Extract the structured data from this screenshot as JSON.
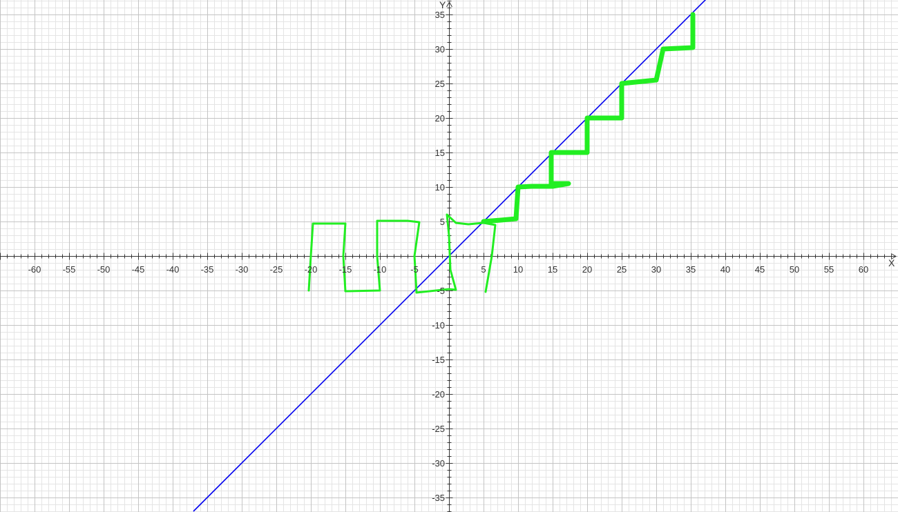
{
  "chart_data": {
    "type": "line",
    "title": "",
    "xlabel": "X",
    "ylabel": "Y",
    "xlim": [
      -65,
      65
    ],
    "ylim": [
      -37.1,
      37.1
    ],
    "grid": true,
    "minor_grid_step": 1,
    "major_grid_step": 5,
    "tick_step": 5,
    "x_tick_labels": [
      "-60",
      "-55",
      "-50",
      "-45",
      "-40",
      "-35",
      "-30",
      "-25",
      "-20",
      "-15",
      "-10",
      "-5",
      "5",
      "10",
      "15",
      "20",
      "25",
      "30",
      "35",
      "40",
      "45",
      "50",
      "55",
      "60"
    ],
    "y_tick_labels": [
      "35",
      "30",
      "25",
      "20",
      "15",
      "10",
      "5",
      "-5",
      "-10",
      "-15",
      "-20",
      "-25",
      "-30",
      "-35"
    ],
    "series": [
      {
        "kind": "line",
        "color": "#0000ee",
        "points": [
          [
            -37,
            -37
          ],
          [
            37.4,
            37.4
          ]
        ]
      },
      {
        "kind": "freehand",
        "color": "#22ee22",
        "stroke": "thin",
        "points": [
          [
            -20.3,
            -5
          ],
          [
            -20,
            0
          ],
          [
            -19.7,
            4.7
          ],
          [
            -15,
            4.7
          ],
          [
            -15.3,
            0
          ],
          [
            -15,
            -5.1
          ],
          [
            -10,
            -5
          ],
          [
            -10.4,
            0
          ],
          [
            -10.4,
            5.1
          ],
          [
            -6,
            5.1
          ],
          [
            -4.3,
            4.9
          ],
          [
            -5,
            0
          ],
          [
            -4.7,
            -5.3
          ],
          [
            0,
            -4.8
          ],
          [
            1,
            -4.9
          ],
          [
            0.2,
            -2
          ],
          [
            0,
            3
          ],
          [
            -0.3,
            6
          ],
          [
            1,
            4.8
          ],
          [
            2.8,
            4.6
          ],
          [
            5,
            4.8
          ],
          [
            6.7,
            4.5
          ],
          [
            6.2,
            0
          ],
          [
            5.3,
            -5.2
          ]
        ]
      },
      {
        "kind": "freehand",
        "color": "#22ee22",
        "stroke": "thick",
        "points": [
          [
            5,
            5
          ],
          [
            7.5,
            5.2
          ],
          [
            9.7,
            5.4
          ],
          [
            10,
            10
          ],
          [
            12,
            10.1
          ],
          [
            15,
            10.1
          ],
          [
            17.3,
            10.5
          ],
          [
            14.8,
            10.5
          ],
          [
            14.8,
            15
          ],
          [
            17,
            15
          ],
          [
            20,
            15
          ],
          [
            20,
            20
          ],
          [
            22,
            20
          ],
          [
            25,
            20
          ],
          [
            25,
            25
          ],
          [
            27,
            25.2
          ],
          [
            30,
            25.5
          ],
          [
            31,
            30
          ],
          [
            35.3,
            30.2
          ],
          [
            35.3,
            35
          ]
        ]
      }
    ]
  }
}
